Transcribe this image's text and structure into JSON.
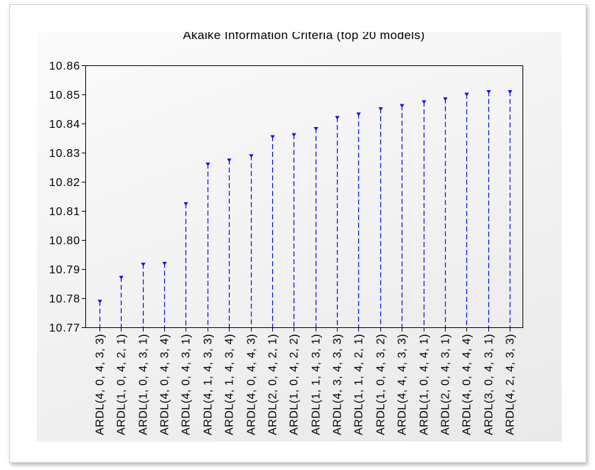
{
  "chart_data": {
    "type": "bar",
    "title": "Akaike Information Criteria (top 20 models)",
    "categories": [
      "ARDL(4, 0, 4, 3, 3)",
      "ARDL(1, 0, 4, 2, 1)",
      "ARDL(1, 0, 4, 3, 1)",
      "ARDL(4, 0, 4, 3, 4)",
      "ARDL(4, 0, 4, 3, 1)",
      "ARDL(4, 1, 4, 3, 3)",
      "ARDL(4, 1, 4, 3, 4)",
      "ARDL(4, 0, 4, 4, 3)",
      "ARDL(2, 0, 4, 2, 1)",
      "ARDL(1, 0, 4, 2, 2)",
      "ARDL(1, 1, 4, 3, 1)",
      "ARDL(4, 3, 4, 3, 3)",
      "ARDL(1, 1, 4, 2, 1)",
      "ARDL(1, 0, 4, 3, 2)",
      "ARDL(4, 4, 4, 3, 3)",
      "ARDL(1, 0, 4, 4, 1)",
      "ARDL(2, 0, 4, 3, 1)",
      "ARDL(4, 0, 4, 4, 4)",
      "ARDL(3, 0, 4, 3, 1)",
      "ARDL(4, 2, 4, 3, 3)"
    ],
    "values": [
      10.7791,
      10.7873,
      10.7918,
      10.7921,
      10.8126,
      10.8262,
      10.8276,
      10.8291,
      10.8356,
      10.8363,
      10.8384,
      10.8422,
      10.8434,
      10.8452,
      10.8463,
      10.8476,
      10.8486,
      10.8502,
      10.8511,
      10.8511
    ],
    "ylim": [
      10.77,
      10.86
    ],
    "ytick_labels": [
      "10.77",
      "10.78",
      "10.79",
      "10.80",
      "10.81",
      "10.82",
      "10.83",
      "10.84",
      "10.85",
      "10.86"
    ],
    "grid": false,
    "colors": {
      "series": "#0000FF",
      "axis": "#000000"
    }
  }
}
